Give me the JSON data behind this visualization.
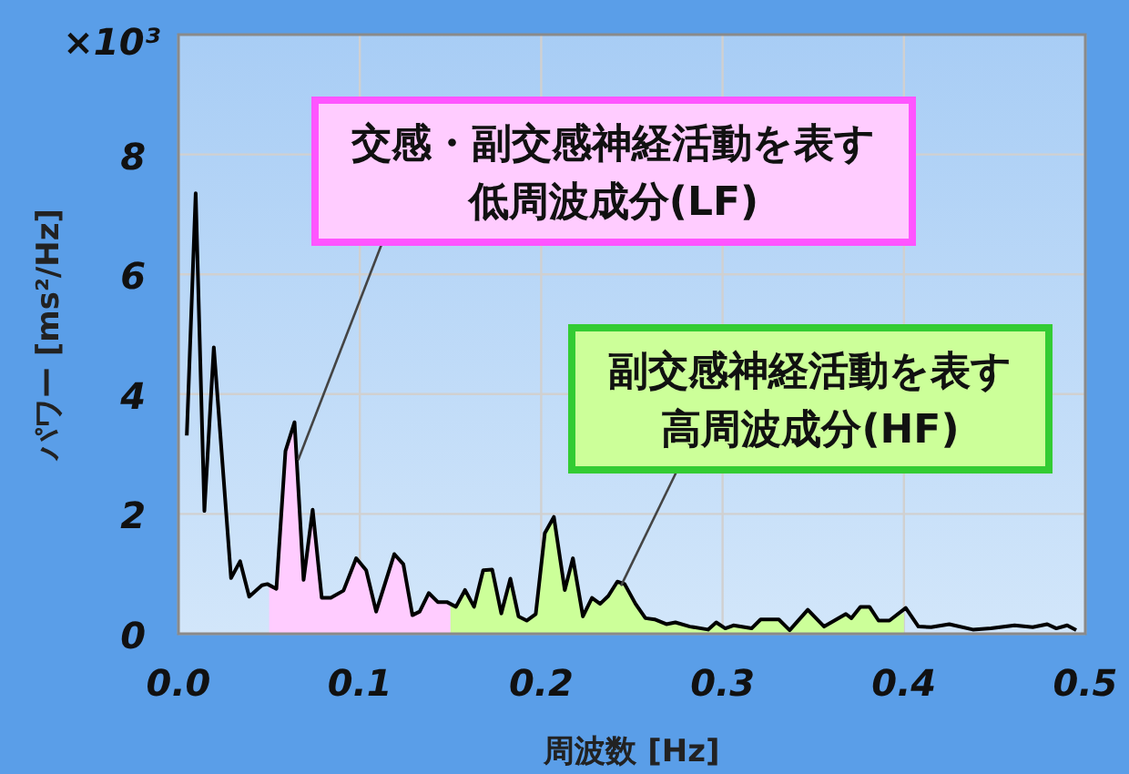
{
  "chart_data": {
    "type": "line",
    "xlabel": "周波数 [Hz]",
    "ylabel": "パワー [ms²/Hz]",
    "annotations": [
      "×10³",
      {
        "text": "交感・副交感神経活動を表す低周波成分(LF)",
        "x": 0.066,
        "y": 2.9
      },
      {
        "text": "副交感神経活動を表す高周波成分(HF)",
        "x": 0.244,
        "y": 0.8
      }
    ],
    "xlim": [
      0,
      0.5
    ],
    "ylim": [
      0,
      10
    ],
    "xticks": [
      {
        "value": 0,
        "label": "0.0"
      },
      0.1,
      0.2,
      0.3,
      0.4,
      0.5
    ],
    "yticks": [
      0,
      2,
      4,
      6,
      8
    ],
    "grid": true,
    "line_style": "solid",
    "series": [
      {
        "type": "area",
        "color": "#ffccff",
        "x": [
          0.05,
          0.054,
          0.059,
          0.064,
          0.069,
          0.074,
          0.079,
          0.084,
          0.091,
          0.098,
          0.1035,
          0.109,
          0.114,
          0.119,
          0.124,
          0.129,
          0.133,
          0.138,
          0.143,
          0.148,
          0.15
        ],
        "values": [
          0.8,
          0.75,
          3.05,
          3.53,
          0.9,
          2.07,
          0.6,
          0.6,
          0.72,
          1.26,
          1.06,
          0.37,
          0.85,
          1.33,
          1.16,
          0.31,
          0.37,
          0.68,
          0.53,
          0.53,
          0.5
        ]
      },
      {
        "type": "area",
        "color": "#ccff99",
        "x": [
          0.15,
          0.153,
          0.158,
          0.163,
          0.168,
          0.173,
          0.178,
          0.183,
          0.1875,
          0.192,
          0.197,
          0.202,
          0.207,
          0.213,
          0.2175,
          0.223,
          0.228,
          0.2325,
          0.237,
          0.242,
          0.246,
          0.252,
          0.2575,
          0.2625,
          0.269,
          0.274,
          0.282,
          0.292,
          0.2965,
          0.3015,
          0.306,
          0.316,
          0.321,
          0.331,
          0.337,
          0.347,
          0.356,
          0.368,
          0.371,
          0.376,
          0.381,
          0.386,
          0.392,
          0.4
        ],
        "values": [
          0.5,
          0.45,
          0.73,
          0.45,
          1.06,
          1.07,
          0.34,
          0.92,
          0.29,
          0.22,
          0.33,
          1.68,
          1.95,
          0.73,
          1.26,
          0.29,
          0.6,
          0.5,
          0.63,
          0.87,
          0.83,
          0.5,
          0.26,
          0.24,
          0.16,
          0.19,
          0.12,
          0.07,
          0.19,
          0.09,
          0.14,
          0.09,
          0.24,
          0.24,
          0.06,
          0.4,
          0.12,
          0.33,
          0.26,
          0.45,
          0.45,
          0.22,
          0.22,
          0.35
        ]
      },
      {
        "color": "#000000",
        "x": [
          0.0046,
          0.0095,
          0.0143,
          0.0195,
          0.029,
          0.034,
          0.039,
          0.046,
          0.049,
          0.054,
          0.059,
          0.064,
          0.069,
          0.074,
          0.079,
          0.084,
          0.091,
          0.098,
          0.1035,
          0.109,
          0.114,
          0.119,
          0.124,
          0.129,
          0.133,
          0.138,
          0.143,
          0.148,
          0.153,
          0.158,
          0.163,
          0.168,
          0.173,
          0.178,
          0.183,
          0.1875,
          0.192,
          0.197,
          0.202,
          0.207,
          0.213,
          0.2175,
          0.223,
          0.228,
          0.2325,
          0.237,
          0.242,
          0.246,
          0.252,
          0.2575,
          0.2625,
          0.269,
          0.274,
          0.282,
          0.292,
          0.2965,
          0.3015,
          0.306,
          0.316,
          0.321,
          0.331,
          0.337,
          0.347,
          0.356,
          0.368,
          0.371,
          0.376,
          0.381,
          0.386,
          0.392,
          0.401,
          0.408,
          0.415,
          0.425,
          0.438,
          0.448,
          0.461,
          0.471,
          0.479,
          0.484,
          0.49,
          0.495
        ],
        "values": [
          3.31,
          7.35,
          2.05,
          4.78,
          0.93,
          1.21,
          0.62,
          0.81,
          0.83,
          0.75,
          3.05,
          3.53,
          0.9,
          2.07,
          0.6,
          0.6,
          0.72,
          1.26,
          1.06,
          0.37,
          0.85,
          1.33,
          1.16,
          0.31,
          0.37,
          0.68,
          0.53,
          0.53,
          0.45,
          0.73,
          0.45,
          1.06,
          1.07,
          0.34,
          0.92,
          0.29,
          0.22,
          0.33,
          1.68,
          1.95,
          0.73,
          1.26,
          0.29,
          0.6,
          0.5,
          0.63,
          0.87,
          0.83,
          0.5,
          0.26,
          0.24,
          0.16,
          0.19,
          0.12,
          0.07,
          0.19,
          0.09,
          0.14,
          0.09,
          0.24,
          0.24,
          0.06,
          0.4,
          0.12,
          0.33,
          0.26,
          0.45,
          0.45,
          0.22,
          0.22,
          0.43,
          0.12,
          0.11,
          0.16,
          0.07,
          0.09,
          0.14,
          0.11,
          0.16,
          0.09,
          0.14,
          0.06
        ]
      }
    ]
  }
}
